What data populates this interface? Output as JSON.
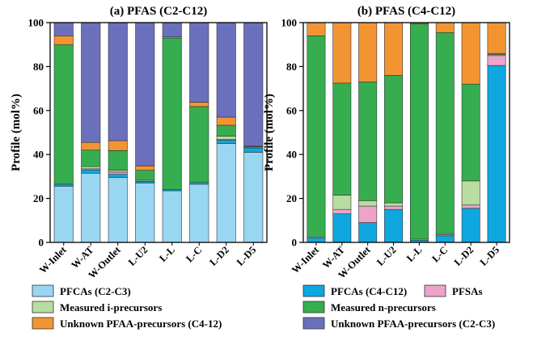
{
  "colors": {
    "PFCAs (C2-C3)": "#99d6f2",
    "PFCAs (C4-C12)": "#0ea7e0",
    "PFSAs": "#eda4c8",
    "Measured i-precursors": "#b9dca0",
    "Measured n-precursors": "#36ae4f",
    "Unknown PFAA-precursors (C4-12)": "#f39433",
    "Unknown PFAA-precursors (C2-C3)": "#6b70bd"
  },
  "legend": {
    "row1": [
      "PFCAs (C2-C3)",
      "PFCAs (C4-C12)",
      "PFSAs"
    ],
    "row2": [
      "Measured i-precursors",
      "Measured n-precursors"
    ],
    "row3": [
      "Unknown PFAA-precursors (C4-12)",
      "Unknown PFAA-precursors (C2-C3)"
    ]
  },
  "chart_data": [
    {
      "type": "bar",
      "stacked": true,
      "title": "(a) PFAS (C2-C12)",
      "ylabel": "Profile (mol%)",
      "ylim": [
        0,
        100
      ],
      "yticks": [
        0,
        20,
        40,
        60,
        80,
        100
      ],
      "categories": [
        "W-Inlet",
        "W-AT",
        "W-Outlet",
        "L-U2",
        "L-L",
        "L-C",
        "L-D2",
        "L-D5"
      ],
      "series": [
        {
          "name": "PFCAs (C2-C3)",
          "values": [
            25.5,
            31.5,
            29.5,
            27,
            23.5,
            26.5,
            45,
            41
          ]
        },
        {
          "name": "PFCAs (C4-C12)",
          "values": [
            1,
            1.5,
            1.5,
            0.8,
            0.5,
            0.8,
            1.5,
            2
          ]
        },
        {
          "name": "PFSAs",
          "values": [
            0,
            0.5,
            1,
            0,
            0,
            0,
            0.3,
            0
          ]
        },
        {
          "name": "Measured i-precursors",
          "values": [
            0,
            1,
            0.8,
            0.5,
            0,
            0,
            1.5,
            0
          ]
        },
        {
          "name": "Measured n-precursors",
          "values": [
            63.5,
            7.5,
            9,
            4.5,
            69,
            34.5,
            5,
            0.5
          ]
        },
        {
          "name": "Unknown PFAA-precursors (C4-12)",
          "values": [
            4,
            3.5,
            4.5,
            2,
            0.5,
            2,
            3.7,
            0.3
          ]
        },
        {
          "name": "Unknown PFAA-precursors (C2-C3)",
          "values": [
            6,
            54.5,
            53.7,
            65.2,
            6.5,
            36.2,
            43,
            56.2
          ]
        }
      ]
    },
    {
      "type": "bar",
      "stacked": true,
      "title": "(b) PFAS (C4-C12)",
      "ylabel": "Profile (mol%)",
      "ylim": [
        0,
        100
      ],
      "yticks": [
        0,
        20,
        40,
        60,
        80,
        100
      ],
      "categories": [
        "W-Inlet",
        "W-AT",
        "W-Outlet",
        "L-U2",
        "L-L",
        "L-C",
        "L-D2",
        "L-D5"
      ],
      "series": [
        {
          "name": "PFCAs (C4-C12)",
          "values": [
            2,
            13,
            9,
            15,
            1,
            3,
            15.5,
            80.5
          ]
        },
        {
          "name": "PFSAs",
          "values": [
            0.5,
            2,
            7.5,
            1.5,
            0.5,
            0.5,
            1.5,
            4.5
          ]
        },
        {
          "name": "Measured i-precursors",
          "values": [
            0,
            6.5,
            2.5,
            1.5,
            0,
            0.5,
            11,
            0.5
          ]
        },
        {
          "name": "Measured n-precursors",
          "values": [
            91.5,
            51,
            54,
            58,
            98,
            91.5,
            44,
            0.5
          ]
        },
        {
          "name": "Unknown PFAA-precursors (C4-12)",
          "values": [
            6,
            27.5,
            27,
            24,
            0.5,
            4.5,
            28,
            14
          ]
        }
      ]
    }
  ]
}
